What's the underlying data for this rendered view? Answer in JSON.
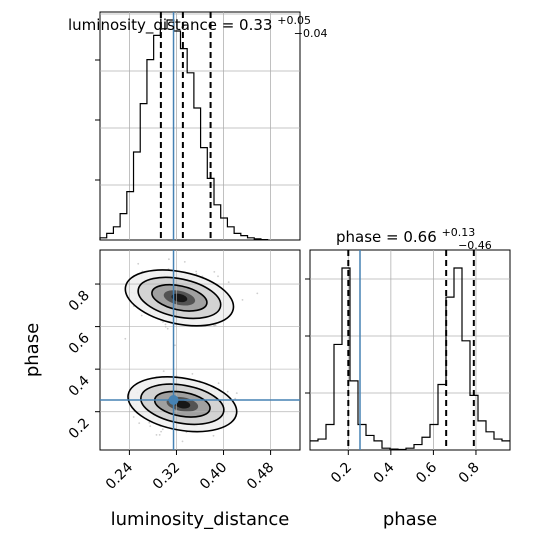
{
  "chart_data": [
    {
      "panel": "luminosity_distance marginal",
      "type": "histogram",
      "title": {
        "base": "luminosity_distance = 0.33",
        "upper": "+0.05",
        "lower": "−0.04"
      },
      "xlim": [
        0.19,
        0.53
      ],
      "bins": [
        0.19,
        0.2014,
        0.2128,
        0.2242,
        0.2356,
        0.247,
        0.2584,
        0.2698,
        0.2812,
        0.2926,
        0.304,
        0.3154,
        0.3268,
        0.3382,
        0.3496,
        0.361,
        0.3724,
        0.3838,
        0.3952,
        0.4066,
        0.418,
        0.4294,
        0.4408,
        0.4522,
        0.4636,
        0.475
      ],
      "values": [
        1,
        3,
        6,
        12,
        22,
        40,
        62,
        82,
        93,
        96,
        100,
        95,
        87,
        76,
        60,
        42,
        28,
        16,
        10,
        6,
        3,
        2,
        1,
        0.5,
        0.2
      ],
      "quantiles": [
        0.2935,
        0.3309,
        0.378
      ],
      "truth": 0.315,
      "grid": true,
      "show_y_tick_labels": false
    },
    {
      "panel": "phase vs luminosity_distance",
      "type": "2d-density",
      "xlabel": "luminosity_distance",
      "ylabel": "phase",
      "xlim": [
        0.19,
        0.53
      ],
      "ylim": [
        0.02,
        0.96
      ],
      "xticks": [
        "0.24",
        "0.32",
        "0.40",
        "0.48"
      ],
      "xtick_values": [
        0.24,
        0.32,
        0.4,
        0.48
      ],
      "yticks": [
        "0.2",
        "0.4",
        "0.6",
        "0.8"
      ],
      "ytick_values": [
        0.2,
        0.4,
        0.6,
        0.8
      ],
      "modes": [
        {
          "x": 0.325,
          "y": 0.735
        },
        {
          "x": 0.33,
          "y": 0.235
        }
      ],
      "truth": {
        "x": 0.315,
        "y": 0.255
      },
      "grid": true
    },
    {
      "panel": "phase marginal",
      "type": "histogram",
      "title": {
        "base": "phase = 0.66",
        "upper": "+0.13",
        "lower": "−0.46"
      },
      "xlabel": "phase",
      "xlim": [
        0.02,
        0.96
      ],
      "xticks": [
        "0.2",
        "0.4",
        "0.6",
        "0.8"
      ],
      "xtick_values": [
        0.2,
        0.4,
        0.6,
        0.8
      ],
      "bins": [
        0.02,
        0.0576,
        0.0952,
        0.1328,
        0.1704,
        0.208,
        0.2456,
        0.2832,
        0.3208,
        0.3584,
        0.396,
        0.4336,
        0.4712,
        0.5088,
        0.5464,
        0.584,
        0.6216,
        0.6592,
        0.6968,
        0.7344,
        0.772,
        0.8096,
        0.8472,
        0.8848,
        0.9224,
        0.96
      ],
      "values": [
        5,
        6,
        14,
        58,
        100,
        38,
        14,
        8,
        5,
        1,
        0.5,
        0.3,
        1,
        3,
        7,
        14,
        36,
        84,
        100,
        60,
        30,
        16,
        10,
        6,
        5
      ],
      "quantiles": [
        0.2,
        0.66,
        0.79
      ],
      "truth": 0.255,
      "grid": true,
      "show_y_tick_labels": false
    }
  ],
  "colors": {
    "line": "#000000",
    "truth": "#4682b4",
    "grid": "#b0b0b0",
    "scatter": "#9e9e9e"
  }
}
